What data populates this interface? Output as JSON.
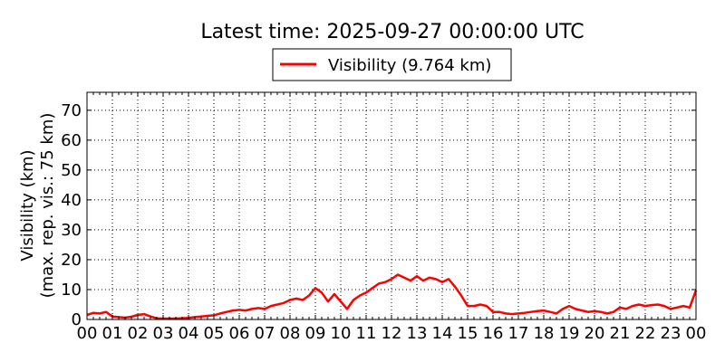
{
  "chart_data": {
    "type": "line",
    "title": "Latest time: 2025-09-27 00:00:00 UTC",
    "ylabel_line1": "Visibility (km)",
    "ylabel_line2": "(max. rep. vis.: 75 km)",
    "xlabel": "",
    "xlim": [
      0,
      24
    ],
    "ylim": [
      0,
      76
    ],
    "grid": true,
    "legend_position": "top-center",
    "x_tick_labels": [
      "00",
      "01",
      "02",
      "03",
      "04",
      "05",
      "06",
      "07",
      "08",
      "09",
      "10",
      "11",
      "12",
      "13",
      "14",
      "15",
      "16",
      "17",
      "18",
      "19",
      "20",
      "21",
      "22",
      "23",
      "00"
    ],
    "y_ticks": [
      0,
      10,
      20,
      30,
      40,
      50,
      60,
      70
    ],
    "series": [
      {
        "name": "Visibility (9.764 km)",
        "color": "#ff0000",
        "x_hours": [
          0,
          0.25,
          0.5,
          0.75,
          1.0,
          1.25,
          1.5,
          1.75,
          2.0,
          2.25,
          2.5,
          2.75,
          3.0,
          3.5,
          4.0,
          4.25,
          4.5,
          4.75,
          5.0,
          5.25,
          5.5,
          5.75,
          6.0,
          6.25,
          6.5,
          6.75,
          7.0,
          7.25,
          7.5,
          7.75,
          8.0,
          8.25,
          8.5,
          8.75,
          9.0,
          9.25,
          9.5,
          9.75,
          10.0,
          10.25,
          10.5,
          10.75,
          11.0,
          11.25,
          11.5,
          11.75,
          12.0,
          12.25,
          12.5,
          12.75,
          13.0,
          13.25,
          13.5,
          13.75,
          14.0,
          14.25,
          14.5,
          14.75,
          15.0,
          15.25,
          15.5,
          15.75,
          16.0,
          16.25,
          16.5,
          16.75,
          17.0,
          17.25,
          17.5,
          17.75,
          18.0,
          18.25,
          18.5,
          18.75,
          19.0,
          19.25,
          19.5,
          19.75,
          20.0,
          20.25,
          20.5,
          20.75,
          21.0,
          21.25,
          21.5,
          21.75,
          22.0,
          22.25,
          22.5,
          22.75,
          23.0,
          23.25,
          23.5,
          23.75,
          24.0
        ],
        "y_km": [
          1.5,
          2.2,
          2.0,
          2.5,
          1.0,
          0.8,
          0.6,
          0.9,
          1.5,
          1.8,
          1.0,
          0.4,
          0.3,
          0.3,
          0.5,
          0.8,
          1.0,
          1.2,
          1.4,
          2.0,
          2.5,
          3.0,
          3.2,
          3.0,
          3.5,
          3.8,
          3.5,
          4.5,
          5.0,
          5.5,
          6.5,
          7.0,
          6.5,
          8.0,
          10.5,
          9.0,
          6.0,
          8.5,
          6.0,
          3.5,
          6.5,
          8.0,
          9.0,
          10.5,
          12.0,
          12.5,
          13.5,
          15.0,
          14.0,
          13.0,
          14.5,
          13.0,
          14.0,
          13.5,
          12.5,
          13.5,
          11.0,
          8.0,
          4.5,
          4.5,
          5.0,
          4.5,
          2.5,
          2.5,
          2.0,
          1.8,
          2.0,
          2.2,
          2.5,
          2.8,
          3.0,
          2.5,
          2.0,
          3.5,
          4.5,
          3.5,
          3.0,
          2.5,
          2.8,
          2.5,
          2.0,
          2.5,
          4.0,
          3.5,
          4.5,
          5.0,
          4.5,
          4.8,
          5.0,
          4.5,
          3.5,
          4.0,
          4.5,
          4.0,
          9.764
        ]
      }
    ]
  }
}
